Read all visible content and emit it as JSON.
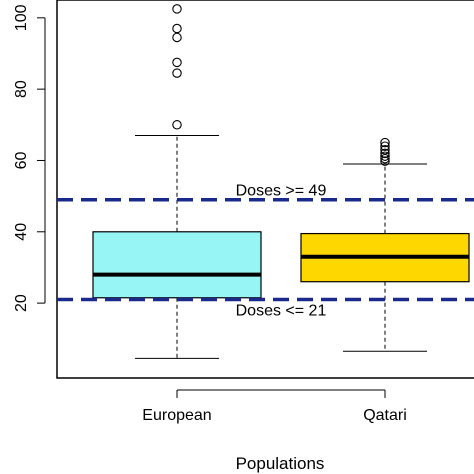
{
  "chart_data": {
    "type": "box",
    "title": "",
    "xlabel": "Populations",
    "ylabel": "",
    "ylim": [
      -1,
      105
    ],
    "y_ticks": [
      20,
      40,
      60,
      80,
      100
    ],
    "categories": [
      "European",
      "Qatari"
    ],
    "colors": {
      "European": "#98F5F5",
      "Qatari": "#FFD700",
      "reference_line": "#1A2A8A"
    },
    "series": [
      {
        "category": "European",
        "whisker_low": 4.5,
        "q1": 21.5,
        "median": 28,
        "q3": 40,
        "whisker_high": 67,
        "outliers": [
          70,
          84.5,
          87.5,
          94.5,
          97,
          102.5
        ]
      },
      {
        "category": "Qatari",
        "whisker_low": 6.5,
        "q1": 26,
        "median": 33,
        "q3": 39.5,
        "whisker_high": 59,
        "outliers": [
          59.8,
          60.5,
          61.2,
          62,
          63,
          64,
          65
        ]
      }
    ],
    "reference_lines": [
      {
        "value": 49,
        "label": "Doses >= 49"
      },
      {
        "value": 21,
        "label": "Doses <= 21"
      }
    ]
  }
}
